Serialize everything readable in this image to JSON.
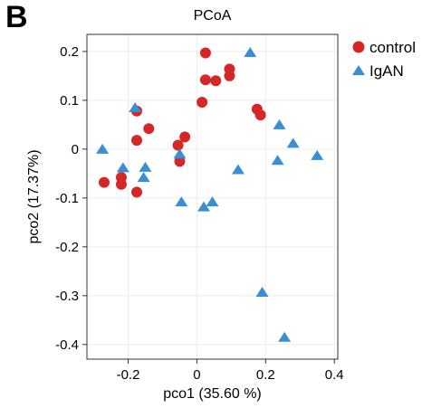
{
  "panel_label": "B",
  "chart_data": {
    "type": "scatter",
    "title": "PCoA",
    "xlabel": "pco1 (35.60 %)",
    "ylabel": "pco2  (17.37%)",
    "xlim": [
      -0.32,
      0.41
    ],
    "ylim": [
      -0.43,
      0.235
    ],
    "xticks": [
      -0.2,
      0,
      0.2,
      0.4
    ],
    "xtick_labels": [
      "-0.2",
      "0",
      "0.2",
      "0.4"
    ],
    "yticks": [
      0.2,
      0.1,
      0,
      -0.1,
      -0.2,
      -0.3,
      -0.4
    ],
    "ytick_labels": [
      "0.2",
      "0.1",
      "0",
      "-0.1",
      "-0.2",
      "-0.3",
      "-0.4"
    ],
    "grid": true,
    "legend_position": "outside-right-top",
    "series": [
      {
        "name": "control",
        "marker": "circle",
        "color": "#d62728",
        "points": [
          [
            -0.27,
            -0.068
          ],
          [
            -0.22,
            -0.072
          ],
          [
            -0.22,
            -0.058
          ],
          [
            -0.175,
            -0.088
          ],
          [
            -0.175,
            0.078
          ],
          [
            -0.175,
            0.018
          ],
          [
            -0.14,
            0.042
          ],
          [
            -0.055,
            0.008
          ],
          [
            -0.05,
            -0.025
          ],
          [
            -0.035,
            0.025
          ],
          [
            0.015,
            0.096
          ],
          [
            0.025,
            0.197
          ],
          [
            0.025,
            0.142
          ],
          [
            0.055,
            0.14
          ],
          [
            0.095,
            0.164
          ],
          [
            0.095,
            0.15
          ],
          [
            0.175,
            0.082
          ],
          [
            0.185,
            0.07
          ]
        ]
      },
      {
        "name": "IgAN",
        "marker": "triangle",
        "color": "#3a8fd4",
        "points": [
          [
            -0.275,
            0.0
          ],
          [
            -0.215,
            -0.038
          ],
          [
            -0.18,
            0.085
          ],
          [
            -0.15,
            -0.037
          ],
          [
            -0.155,
            -0.058
          ],
          [
            -0.05,
            -0.01
          ],
          [
            -0.045,
            -0.108
          ],
          [
            0.02,
            -0.118
          ],
          [
            0.045,
            -0.108
          ],
          [
            0.12,
            -0.042
          ],
          [
            0.155,
            0.198
          ],
          [
            0.19,
            -0.293
          ],
          [
            0.235,
            -0.023
          ],
          [
            0.24,
            0.05
          ],
          [
            0.255,
            -0.385
          ],
          [
            0.28,
            0.012
          ],
          [
            0.35,
            -0.013
          ]
        ]
      }
    ]
  }
}
